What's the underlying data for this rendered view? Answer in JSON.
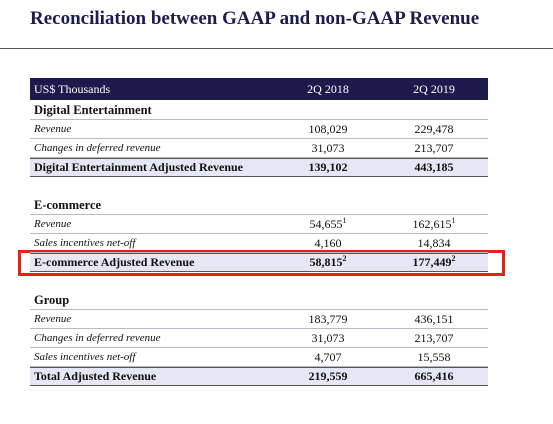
{
  "title": "Reconciliation between GAAP and non-GAAP Revenue",
  "table": {
    "header": [
      "US$ Thousands",
      "2Q 2018",
      "2Q 2019"
    ],
    "sections": [
      {
        "heading": "Digital Entertainment",
        "rows": [
          {
            "label": "Revenue",
            "cells": [
              {
                "text": "108,029"
              },
              {
                "text": "229,478"
              }
            ]
          },
          {
            "label": "Changes in deferred revenue",
            "cells": [
              {
                "text": "31,073"
              },
              {
                "text": "213,707"
              }
            ]
          }
        ],
        "total": {
          "label": "Digital Entertainment Adjusted Revenue",
          "cells": [
            {
              "text": "139,102"
            },
            {
              "text": "443,185"
            }
          ]
        }
      },
      {
        "heading": "E-commerce",
        "rows": [
          {
            "label": "Revenue",
            "cells": [
              {
                "text": "54,655",
                "sup": "1"
              },
              {
                "text": "162,615",
                "sup": "1"
              }
            ]
          },
          {
            "label": "Sales incentives net-off",
            "cells": [
              {
                "text": "4,160"
              },
              {
                "text": "14,834"
              }
            ]
          }
        ],
        "total": {
          "label": "E-commerce Adjusted Revenue",
          "cells": [
            {
              "text": "58,815",
              "sup": "2"
            },
            {
              "text": "177,449",
              "sup": "2"
            }
          ]
        }
      },
      {
        "heading": "Group",
        "rows": [
          {
            "label": "Revenue",
            "cells": [
              {
                "text": "183,779"
              },
              {
                "text": "436,151"
              }
            ]
          },
          {
            "label": "Changes in deferred revenue",
            "cells": [
              {
                "text": "31,073"
              },
              {
                "text": "213,707"
              }
            ]
          },
          {
            "label": "Sales incentives net-off",
            "cells": [
              {
                "text": "4,707"
              },
              {
                "text": "15,558"
              }
            ]
          }
        ],
        "total": {
          "label": "Total Adjusted Revenue",
          "cells": [
            {
              "text": "219,559"
            },
            {
              "text": "665,416"
            }
          ]
        }
      }
    ]
  }
}
